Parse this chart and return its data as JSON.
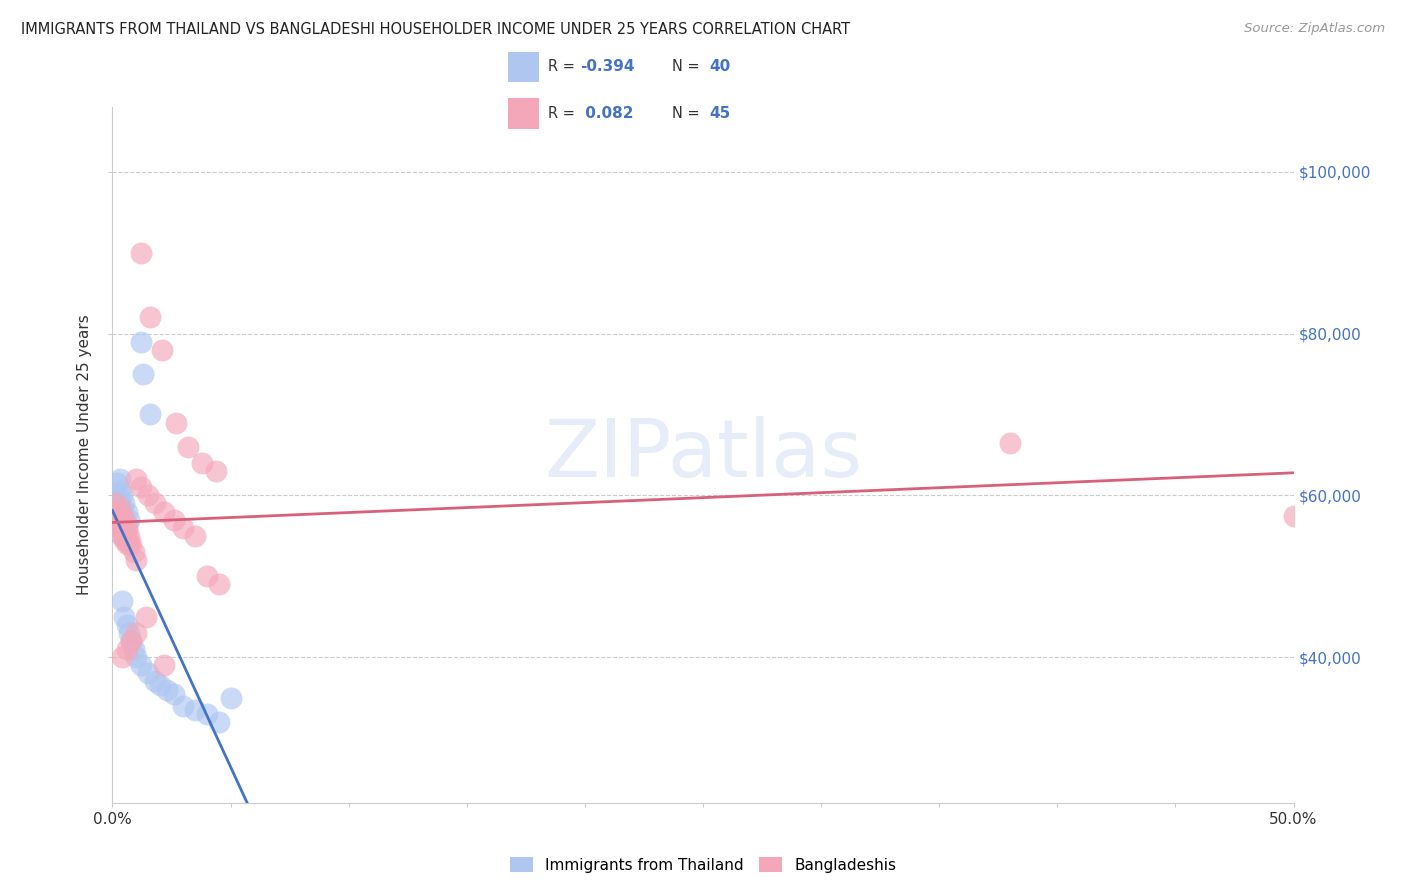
{
  "title": "IMMIGRANTS FROM THAILAND VS BANGLADESHI HOUSEHOLDER INCOME UNDER 25 YEARS CORRELATION CHART",
  "source": "Source: ZipAtlas.com",
  "ylabel": "Householder Income Under 25 years",
  "right_yticks": [
    "$100,000",
    "$80,000",
    "$60,000",
    "$40,000"
  ],
  "right_ytick_vals": [
    100000,
    80000,
    60000,
    40000
  ],
  "ylim": [
    22000,
    108000
  ],
  "xlim": [
    0.0,
    0.5
  ],
  "watermark_text": "ZIPatlas",
  "thailand_scatter": [
    [
      0.001,
      60000
    ],
    [
      0.002,
      61500
    ],
    [
      0.002,
      59000
    ],
    [
      0.002,
      58000
    ],
    [
      0.003,
      62000
    ],
    [
      0.003,
      60500
    ],
    [
      0.003,
      59500
    ],
    [
      0.003,
      57500
    ],
    [
      0.003,
      56000
    ],
    [
      0.004,
      60000
    ],
    [
      0.004,
      58500
    ],
    [
      0.004,
      57000
    ],
    [
      0.004,
      55000
    ],
    [
      0.005,
      59000
    ],
    [
      0.005,
      57000
    ],
    [
      0.005,
      55500
    ],
    [
      0.006,
      58000
    ],
    [
      0.006,
      56500
    ],
    [
      0.007,
      57000
    ],
    [
      0.012,
      79000
    ],
    [
      0.013,
      75000
    ],
    [
      0.016,
      70000
    ],
    [
      0.004,
      47000
    ],
    [
      0.005,
      45000
    ],
    [
      0.006,
      44000
    ],
    [
      0.007,
      43000
    ],
    [
      0.008,
      42000
    ],
    [
      0.009,
      41000
    ],
    [
      0.01,
      40000
    ],
    [
      0.012,
      39000
    ],
    [
      0.015,
      38000
    ],
    [
      0.018,
      37000
    ],
    [
      0.02,
      36500
    ],
    [
      0.023,
      36000
    ],
    [
      0.026,
      35500
    ],
    [
      0.03,
      34000
    ],
    [
      0.035,
      33500
    ],
    [
      0.04,
      33000
    ],
    [
      0.045,
      32000
    ],
    [
      0.05,
      35000
    ]
  ],
  "bangladesh_scatter": [
    [
      0.001,
      59000
    ],
    [
      0.002,
      58000
    ],
    [
      0.002,
      57000
    ],
    [
      0.003,
      58500
    ],
    [
      0.003,
      57000
    ],
    [
      0.003,
      56000
    ],
    [
      0.004,
      57500
    ],
    [
      0.004,
      56000
    ],
    [
      0.004,
      55000
    ],
    [
      0.005,
      57000
    ],
    [
      0.005,
      56000
    ],
    [
      0.005,
      54500
    ],
    [
      0.006,
      56000
    ],
    [
      0.006,
      55000
    ],
    [
      0.006,
      54000
    ],
    [
      0.007,
      55000
    ],
    [
      0.007,
      54000
    ],
    [
      0.008,
      54000
    ],
    [
      0.009,
      53000
    ],
    [
      0.01,
      52000
    ],
    [
      0.012,
      90000
    ],
    [
      0.016,
      82000
    ],
    [
      0.021,
      78000
    ],
    [
      0.027,
      69000
    ],
    [
      0.032,
      66000
    ],
    [
      0.038,
      64000
    ],
    [
      0.044,
      63000
    ],
    [
      0.01,
      62000
    ],
    [
      0.012,
      61000
    ],
    [
      0.015,
      60000
    ],
    [
      0.018,
      59000
    ],
    [
      0.022,
      58000
    ],
    [
      0.026,
      57000
    ],
    [
      0.03,
      56000
    ],
    [
      0.035,
      55000
    ],
    [
      0.04,
      50000
    ],
    [
      0.045,
      49000
    ],
    [
      0.38,
      66500
    ],
    [
      0.004,
      40000
    ],
    [
      0.006,
      41000
    ],
    [
      0.008,
      42000
    ],
    [
      0.01,
      43000
    ],
    [
      0.014,
      45000
    ],
    [
      0.022,
      39000
    ],
    [
      0.5,
      57500
    ]
  ],
  "thailand_line_color": "#4472c4",
  "bangladesh_line_color": "#d9607a",
  "thailand_scatter_color": "#aec6f0",
  "bangladesh_scatter_color": "#f4a7b9",
  "background_color": "#ffffff",
  "grid_color": "#cccccc",
  "r_thailand": "-0.394",
  "n_thailand": "40",
  "r_bangladesh": "0.082",
  "n_bangladesh": "45"
}
